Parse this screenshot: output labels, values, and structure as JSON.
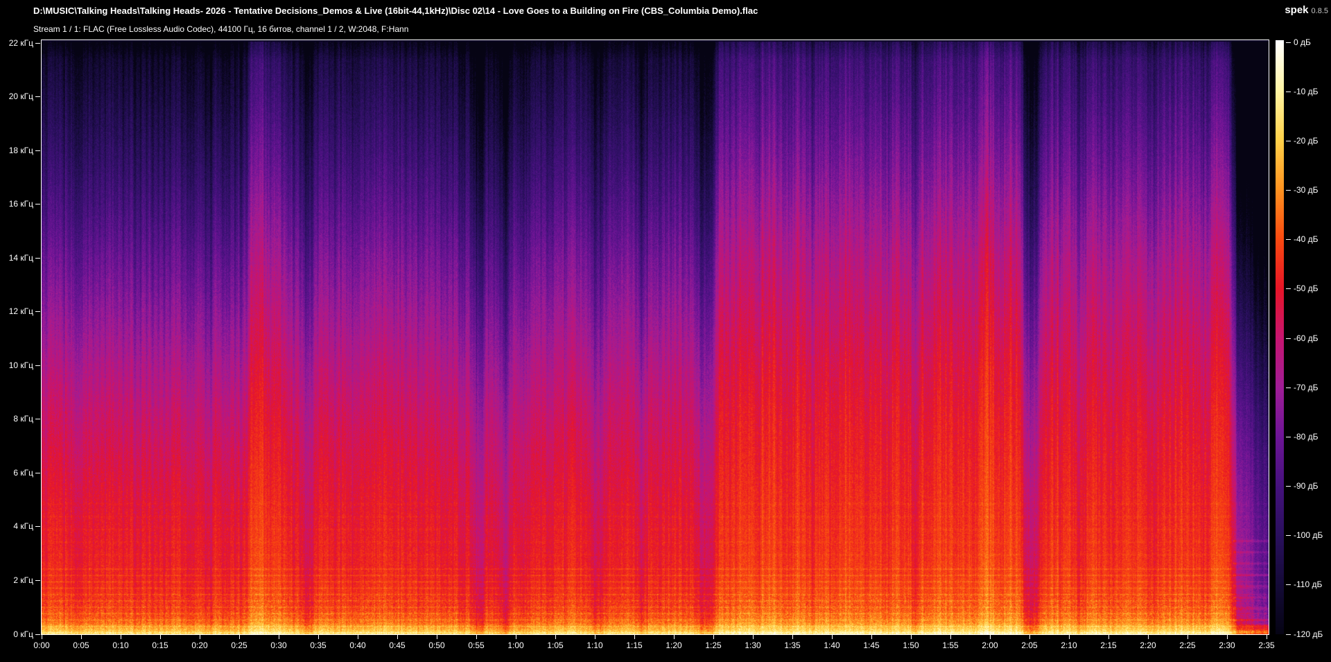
{
  "app": {
    "name": "spek",
    "version": "0.8.5",
    "background": "#000000",
    "text_color": "#ffffff"
  },
  "header": {
    "file_path": "D:\\MUSIC\\Talking Heads\\Talking Heads- 2026 - Tentative Decisions_Demos & Live (16bit-44,1kHz)\\Disc 02\\14 - Love Goes to a Building on Fire (CBS_Columbia Demo).flac",
    "stream_info": "Stream 1 / 1: FLAC (Free Lossless Audio Codec), 44100 Гц, 16 битов, channel 1 / 2, W:2048, F:Hann"
  },
  "chart_data": {
    "type": "heatmap",
    "title": "Spectrogram of audio file (frequency vs time, color = level in dB)",
    "duration_s": 155,
    "freq_max_khz": 22.05,
    "x_axis": {
      "unit": "m:ss",
      "ticks": [
        "0:00",
        "0:05",
        "0:10",
        "0:15",
        "0:20",
        "0:25",
        "0:30",
        "0:35",
        "0:40",
        "0:45",
        "0:50",
        "0:55",
        "1:00",
        "1:05",
        "1:10",
        "1:15",
        "1:20",
        "1:25",
        "1:30",
        "1:35",
        "1:40",
        "1:45",
        "1:50",
        "1:55",
        "2:00",
        "2:05",
        "2:10",
        "2:15",
        "2:20",
        "2:25",
        "2:30",
        "2:35"
      ]
    },
    "y_axis": {
      "unit": "кГц",
      "ticks": [
        "22 кГц",
        "20 кГц",
        "18 кГц",
        "16 кГц",
        "14 кГц",
        "12 кГц",
        "10 кГц",
        "8 кГц",
        "6 кГц",
        "4 кГц",
        "2 кГц",
        "0 кГц"
      ]
    },
    "legend": {
      "unit": "дБ",
      "ticks": [
        "0 дБ",
        "-10 дБ",
        "-20 дБ",
        "-30 дБ",
        "-40 дБ",
        "-50 дБ",
        "-60 дБ",
        "-70 дБ",
        "-80 дБ",
        "-90 дБ",
        "-100 дБ",
        "-110 дБ",
        "-120 дБ"
      ],
      "range_db": [
        0,
        -120
      ]
    },
    "palette": [
      {
        "db": 0,
        "color": "#ffffff"
      },
      {
        "db": -10,
        "color": "#fff5a5"
      },
      {
        "db": -20,
        "color": "#ffd24a"
      },
      {
        "db": -30,
        "color": "#ff9420"
      },
      {
        "db": -40,
        "color": "#fa4b10"
      },
      {
        "db": -50,
        "color": "#e81627"
      },
      {
        "db": -60,
        "color": "#c81570"
      },
      {
        "db": -70,
        "color": "#a01d96"
      },
      {
        "db": -80,
        "color": "#6e1596"
      },
      {
        "db": -90,
        "color": "#46127e"
      },
      {
        "db": -100,
        "color": "#2a105e"
      },
      {
        "db": -110,
        "color": "#150b38"
      },
      {
        "db": -120,
        "color": "#060414"
      }
    ],
    "freq_profile_db": [
      [
        0,
        -22
      ],
      [
        0.25,
        -29
      ],
      [
        0.5,
        -36
      ],
      [
        1,
        -42
      ],
      [
        2,
        -46
      ],
      [
        3,
        -48
      ],
      [
        4,
        -49
      ],
      [
        6,
        -51
      ],
      [
        8,
        -53
      ],
      [
        10,
        -56
      ],
      [
        12,
        -60
      ],
      [
        14,
        -65
      ],
      [
        16,
        -72
      ],
      [
        18,
        -80
      ],
      [
        20,
        -88
      ],
      [
        21.3,
        -93
      ],
      [
        22.05,
        -104
      ]
    ],
    "sections": [
      {
        "t0": 0,
        "t1": 26,
        "low": -2,
        "high": -19
      },
      {
        "t0": 26,
        "t1": 30,
        "low": 3,
        "high": -9
      },
      {
        "t0": 30,
        "t1": 52,
        "low": 0,
        "high": -14
      },
      {
        "t0": 52,
        "t1": 62,
        "low": -3,
        "high": -17
      },
      {
        "t0": 62,
        "t1": 83,
        "low": -1,
        "high": -15
      },
      {
        "t0": 83,
        "t1": 85,
        "low": -11,
        "high": -22
      },
      {
        "t0": 85,
        "t1": 124,
        "low": 4,
        "high": -4
      },
      {
        "t0": 124,
        "t1": 126,
        "low": -10,
        "high": -18
      },
      {
        "t0": 126,
        "t1": 150.5,
        "low": 3,
        "high": -6
      },
      {
        "t0": 150.5,
        "t1": 155,
        "low": -16,
        "high": -26
      }
    ],
    "bands": [
      {
        "t": 27.6,
        "w": 0.9,
        "db": 5
      },
      {
        "t": 33.6,
        "w": 0.5,
        "db": -8
      },
      {
        "t": 55.2,
        "w": 0.6,
        "db": -9
      },
      {
        "t": 58.6,
        "w": 0.5,
        "db": -8
      },
      {
        "t": 70.2,
        "w": 0.5,
        "db": -7
      },
      {
        "t": 75.8,
        "w": 0.5,
        "db": -7
      },
      {
        "t": 97.3,
        "w": 0.4,
        "db": -6
      },
      {
        "t": 110.4,
        "w": 0.5,
        "db": -6
      },
      {
        "t": 119.2,
        "w": 0.7,
        "db": 4
      },
      {
        "t": 131.5,
        "w": 0.4,
        "db": -5
      },
      {
        "t": 140.6,
        "w": 0.4,
        "db": -5
      },
      {
        "t": 148.2,
        "w": 0.6,
        "db": 4
      }
    ],
    "fade_out": {
      "start_s": 150.5,
      "rate_db_per_s": -5.5
    }
  }
}
